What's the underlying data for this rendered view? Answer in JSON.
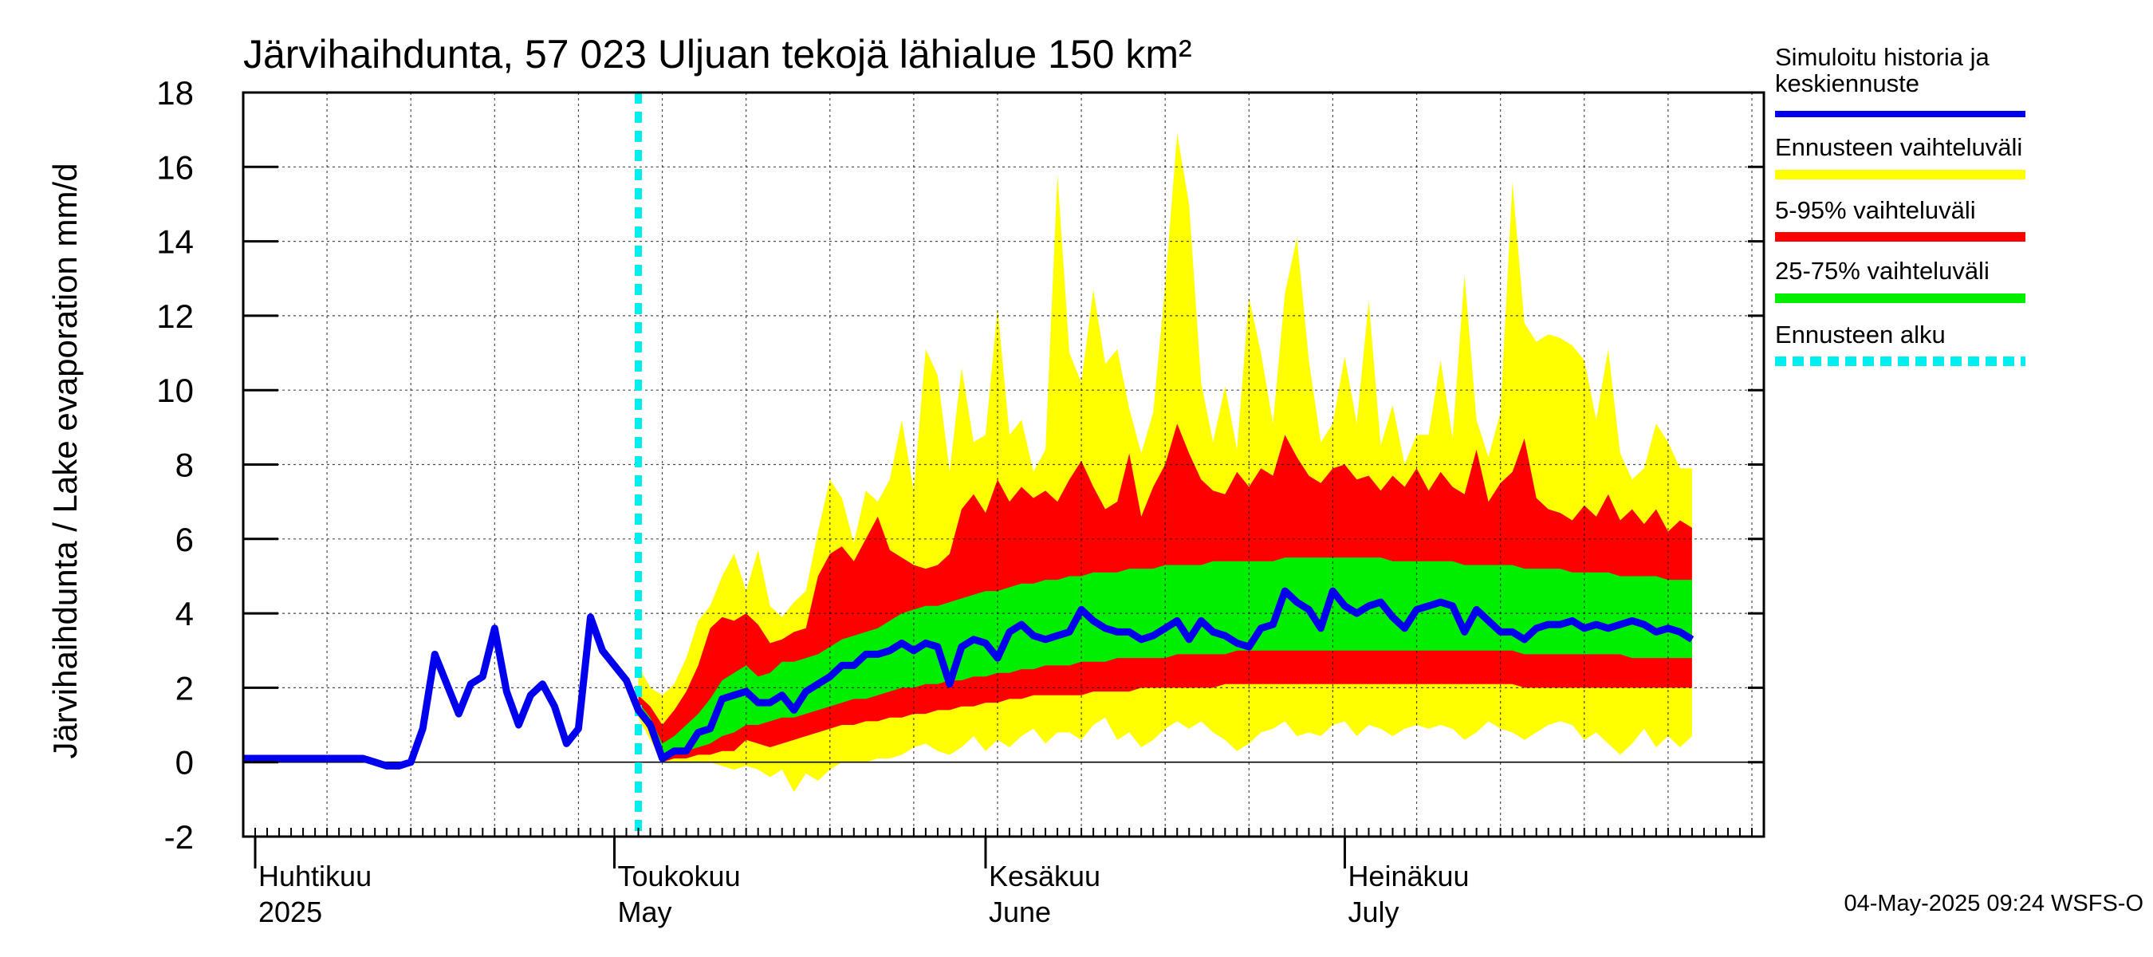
{
  "chart_data": {
    "type": "area",
    "title": "Järvihaihdunta, 57 023 Uljuan tekojä lähialue 150 km²",
    "ylabel": "Järvihaihdunta / Lake evaporation   mm/d",
    "ylim": [
      -2,
      18
    ],
    "yticks": [
      "-2",
      "0",
      "2",
      "4",
      "6",
      "8",
      "10",
      "12",
      "14",
      "16",
      "18"
    ],
    "xlim": [
      "2025-03-31",
      "2025-08-05"
    ],
    "grid": true,
    "months": [
      {
        "date": "2025-04-01",
        "fi": "Huhtikuu",
        "en": "2025"
      },
      {
        "date": "2025-05-01",
        "fi": "Toukokuu",
        "en": "May"
      },
      {
        "date": "2025-06-01",
        "fi": "Kesäkuu",
        "en": "June"
      },
      {
        "date": "2025-07-01",
        "fi": "Heinäkuu",
        "en": "July"
      }
    ],
    "forecast_start": "2025-05-03",
    "legend_position": "right",
    "legend": [
      {
        "label": "Simuloitu historia ja keskiennuste",
        "color": "#0000ee",
        "style": "line"
      },
      {
        "label": "Ennusteen vaihteluväli",
        "color": "#ffff00",
        "style": "band"
      },
      {
        "label": "5-95% vaihteluväli",
        "color": "#ff0000",
        "style": "band"
      },
      {
        "label": "25-75% vaihteluväli",
        "color": "#00ee00",
        "style": "band"
      },
      {
        "label": "Ennusteen alku",
        "color": "#00eeee",
        "style": "dashed"
      }
    ],
    "footer": "04-May-2025 09:24 WSFS-O",
    "history": [
      {
        "x": "2025-03-31",
        "y": 0.1
      },
      {
        "x": "2025-04-01",
        "y": 0.1
      },
      {
        "x": "2025-04-02",
        "y": 0.1
      },
      {
        "x": "2025-04-03",
        "y": 0.1
      },
      {
        "x": "2025-04-04",
        "y": 0.1
      },
      {
        "x": "2025-04-05",
        "y": 0.1
      },
      {
        "x": "2025-04-06",
        "y": 0.1
      },
      {
        "x": "2025-04-07",
        "y": 0.1
      },
      {
        "x": "2025-04-08",
        "y": 0.1
      },
      {
        "x": "2025-04-09",
        "y": 0.1
      },
      {
        "x": "2025-04-10",
        "y": 0.1
      },
      {
        "x": "2025-04-11",
        "y": 0.0
      },
      {
        "x": "2025-04-12",
        "y": -0.1
      },
      {
        "x": "2025-04-13",
        "y": -0.1
      },
      {
        "x": "2025-04-14",
        "y": 0.0
      },
      {
        "x": "2025-04-15",
        "y": 0.9
      },
      {
        "x": "2025-04-16",
        "y": 2.9
      },
      {
        "x": "2025-04-17",
        "y": 2.1
      },
      {
        "x": "2025-04-18",
        "y": 1.3
      },
      {
        "x": "2025-04-19",
        "y": 2.1
      },
      {
        "x": "2025-04-20",
        "y": 2.3
      },
      {
        "x": "2025-04-21",
        "y": 3.6
      },
      {
        "x": "2025-04-22",
        "y": 1.9
      },
      {
        "x": "2025-04-23",
        "y": 1.0
      },
      {
        "x": "2025-04-24",
        "y": 1.8
      },
      {
        "x": "2025-04-25",
        "y": 2.1
      },
      {
        "x": "2025-04-26",
        "y": 1.5
      },
      {
        "x": "2025-04-27",
        "y": 0.5
      },
      {
        "x": "2025-04-28",
        "y": 0.9
      },
      {
        "x": "2025-04-29",
        "y": 3.9
      },
      {
        "x": "2025-04-30",
        "y": 3.0
      },
      {
        "x": "2025-05-01",
        "y": 2.6
      },
      {
        "x": "2025-05-02",
        "y": 2.2
      },
      {
        "x": "2025-05-03",
        "y": 1.4
      }
    ],
    "forecast": [
      {
        "x": "2025-05-03",
        "y": 1.4,
        "min": 1.2,
        "p5": 1.3,
        "p25": 1.3,
        "p75": 1.6,
        "p95": 1.8,
        "max": 2.6
      },
      {
        "x": "2025-05-04",
        "y": 1.0,
        "min": 0.6,
        "p5": 0.8,
        "p25": 0.9,
        "p75": 1.2,
        "p95": 1.5,
        "max": 2.0
      },
      {
        "x": "2025-05-05",
        "y": 0.1,
        "min": 0.0,
        "p5": 0.0,
        "p25": 0.0,
        "p75": 0.5,
        "p95": 1.0,
        "max": 1.8
      },
      {
        "x": "2025-05-06",
        "y": 0.3,
        "min": 0.0,
        "p5": 0.1,
        "p25": 0.2,
        "p75": 0.7,
        "p95": 1.4,
        "max": 2.1
      },
      {
        "x": "2025-05-07",
        "y": 0.3,
        "min": 0.0,
        "p5": 0.1,
        "p25": 0.3,
        "p75": 1.0,
        "p95": 1.9,
        "max": 2.8
      },
      {
        "x": "2025-05-08",
        "y": 0.8,
        "min": 0.0,
        "p5": 0.2,
        "p25": 0.4,
        "p75": 1.3,
        "p95": 2.6,
        "max": 3.8
      },
      {
        "x": "2025-05-09",
        "y": 0.9,
        "min": 0.0,
        "p5": 0.2,
        "p25": 0.5,
        "p75": 1.7,
        "p95": 3.6,
        "max": 4.2
      },
      {
        "x": "2025-05-10",
        "y": 1.7,
        "min": -0.1,
        "p5": 0.3,
        "p25": 0.7,
        "p75": 2.2,
        "p95": 3.9,
        "max": 5.0
      },
      {
        "x": "2025-05-11",
        "y": 1.8,
        "min": -0.2,
        "p5": 0.3,
        "p25": 0.8,
        "p75": 2.4,
        "p95": 3.8,
        "max": 5.6
      },
      {
        "x": "2025-05-12",
        "y": 1.9,
        "min": -0.1,
        "p5": 0.6,
        "p25": 1.0,
        "p75": 2.6,
        "p95": 4.0,
        "max": 4.6
      },
      {
        "x": "2025-05-13",
        "y": 1.6,
        "min": -0.2,
        "p5": 0.5,
        "p25": 1.0,
        "p75": 2.3,
        "p95": 3.7,
        "max": 5.7
      },
      {
        "x": "2025-05-14",
        "y": 1.6,
        "min": -0.4,
        "p5": 0.4,
        "p25": 1.1,
        "p75": 2.4,
        "p95": 3.2,
        "max": 4.2
      },
      {
        "x": "2025-05-15",
        "y": 1.8,
        "min": -0.2,
        "p5": 0.5,
        "p25": 1.2,
        "p75": 2.7,
        "p95": 3.3,
        "max": 3.9
      },
      {
        "x": "2025-05-16",
        "y": 1.4,
        "min": -0.8,
        "p5": 0.6,
        "p25": 1.2,
        "p75": 2.7,
        "p95": 3.5,
        "max": 4.3
      },
      {
        "x": "2025-05-17",
        "y": 1.9,
        "min": -0.3,
        "p5": 0.7,
        "p25": 1.3,
        "p75": 2.8,
        "p95": 3.6,
        "max": 4.6
      },
      {
        "x": "2025-05-18",
        "y": 2.1,
        "min": -0.5,
        "p5": 0.8,
        "p25": 1.4,
        "p75": 2.9,
        "p95": 5.0,
        "max": 6.2
      },
      {
        "x": "2025-05-19",
        "y": 2.3,
        "min": -0.2,
        "p5": 0.9,
        "p25": 1.5,
        "p75": 3.1,
        "p95": 5.6,
        "max": 7.6
      },
      {
        "x": "2025-05-20",
        "y": 2.6,
        "min": 0.0,
        "p5": 1.0,
        "p25": 1.6,
        "p75": 3.3,
        "p95": 5.8,
        "max": 7.1
      },
      {
        "x": "2025-05-21",
        "y": 2.6,
        "min": 0.0,
        "p5": 1.0,
        "p25": 1.7,
        "p75": 3.4,
        "p95": 5.4,
        "max": 5.9
      },
      {
        "x": "2025-05-22",
        "y": 2.9,
        "min": 0.0,
        "p5": 1.1,
        "p25": 1.7,
        "p75": 3.5,
        "p95": 6.0,
        "max": 7.3
      },
      {
        "x": "2025-05-23",
        "y": 2.9,
        "min": 0.1,
        "p5": 1.1,
        "p25": 1.8,
        "p75": 3.6,
        "p95": 6.6,
        "max": 7.0
      },
      {
        "x": "2025-05-24",
        "y": 3.0,
        "min": 0.1,
        "p5": 1.2,
        "p25": 1.9,
        "p75": 3.8,
        "p95": 5.7,
        "max": 7.6
      },
      {
        "x": "2025-05-25",
        "y": 3.2,
        "min": 0.2,
        "p5": 1.2,
        "p25": 2.0,
        "p75": 4.0,
        "p95": 5.5,
        "max": 9.2
      },
      {
        "x": "2025-05-26",
        "y": 3.0,
        "min": 0.4,
        "p5": 1.3,
        "p25": 2.0,
        "p75": 4.1,
        "p95": 5.3,
        "max": 7.3
      },
      {
        "x": "2025-05-27",
        "y": 3.2,
        "min": 0.5,
        "p5": 1.3,
        "p25": 2.1,
        "p75": 4.2,
        "p95": 5.2,
        "max": 11.1
      },
      {
        "x": "2025-05-28",
        "y": 3.1,
        "min": 0.3,
        "p5": 1.4,
        "p25": 2.1,
        "p75": 4.2,
        "p95": 5.3,
        "max": 10.4
      },
      {
        "x": "2025-05-29",
        "y": 2.1,
        "min": 0.2,
        "p5": 1.4,
        "p25": 2.2,
        "p75": 4.3,
        "p95": 5.6,
        "max": 7.8
      },
      {
        "x": "2025-05-30",
        "y": 3.1,
        "min": 0.4,
        "p5": 1.5,
        "p25": 2.2,
        "p75": 4.4,
        "p95": 6.8,
        "max": 10.6
      },
      {
        "x": "2025-05-31",
        "y": 3.3,
        "min": 0.7,
        "p5": 1.5,
        "p25": 2.3,
        "p75": 4.5,
        "p95": 7.2,
        "max": 8.6
      },
      {
        "x": "2025-06-01",
        "y": 3.2,
        "min": 0.3,
        "p5": 1.6,
        "p25": 2.3,
        "p75": 4.6,
        "p95": 6.7,
        "max": 8.8
      },
      {
        "x": "2025-06-02",
        "y": 2.8,
        "min": 0.6,
        "p5": 1.6,
        "p25": 2.4,
        "p75": 4.6,
        "p95": 7.6,
        "max": 12.2
      },
      {
        "x": "2025-06-03",
        "y": 3.5,
        "min": 0.4,
        "p5": 1.7,
        "p25": 2.4,
        "p75": 4.7,
        "p95": 7.0,
        "max": 8.8
      },
      {
        "x": "2025-06-04",
        "y": 3.7,
        "min": 0.7,
        "p5": 1.7,
        "p25": 2.5,
        "p75": 4.8,
        "p95": 7.4,
        "max": 9.2
      },
      {
        "x": "2025-06-05",
        "y": 3.4,
        "min": 0.9,
        "p5": 1.8,
        "p25": 2.5,
        "p75": 4.8,
        "p95": 7.1,
        "max": 7.8
      },
      {
        "x": "2025-06-06",
        "y": 3.3,
        "min": 0.5,
        "p5": 1.8,
        "p25": 2.6,
        "p75": 4.9,
        "p95": 7.3,
        "max": 8.4
      },
      {
        "x": "2025-06-07",
        "y": 3.4,
        "min": 0.8,
        "p5": 1.8,
        "p25": 2.6,
        "p75": 4.9,
        "p95": 7.0,
        "max": 15.8
      },
      {
        "x": "2025-06-08",
        "y": 3.5,
        "min": 0.8,
        "p5": 1.8,
        "p25": 2.6,
        "p75": 5.0,
        "p95": 7.6,
        "max": 11.0
      },
      {
        "x": "2025-06-09",
        "y": 4.1,
        "min": 0.6,
        "p5": 1.8,
        "p25": 2.7,
        "p75": 5.0,
        "p95": 8.1,
        "max": 10.2
      },
      {
        "x": "2025-06-10",
        "y": 3.8,
        "min": 1.0,
        "p5": 1.9,
        "p25": 2.7,
        "p75": 5.1,
        "p95": 7.4,
        "max": 12.7
      },
      {
        "x": "2025-06-11",
        "y": 3.6,
        "min": 1.2,
        "p5": 1.9,
        "p25": 2.7,
        "p75": 5.1,
        "p95": 6.8,
        "max": 10.7
      },
      {
        "x": "2025-06-12",
        "y": 3.5,
        "min": 0.6,
        "p5": 1.9,
        "p25": 2.8,
        "p75": 5.1,
        "p95": 7.0,
        "max": 11.1
      },
      {
        "x": "2025-06-13",
        "y": 3.5,
        "min": 0.8,
        "p5": 1.9,
        "p25": 2.8,
        "p75": 5.2,
        "p95": 8.3,
        "max": 9.5
      },
      {
        "x": "2025-06-14",
        "y": 3.3,
        "min": 0.4,
        "p5": 2.0,
        "p25": 2.8,
        "p75": 5.2,
        "p95": 6.6,
        "max": 8.3
      },
      {
        "x": "2025-06-15",
        "y": 3.4,
        "min": 0.6,
        "p5": 2.0,
        "p25": 2.8,
        "p75": 5.2,
        "p95": 7.4,
        "max": 9.4
      },
      {
        "x": "2025-06-16",
        "y": 3.6,
        "min": 0.9,
        "p5": 2.0,
        "p25": 2.8,
        "p75": 5.3,
        "p95": 8.0,
        "max": 12.8
      },
      {
        "x": "2025-06-17",
        "y": 3.8,
        "min": 1.1,
        "p5": 2.0,
        "p25": 2.9,
        "p75": 5.3,
        "p95": 9.1,
        "max": 16.9
      },
      {
        "x": "2025-06-18",
        "y": 3.3,
        "min": 0.9,
        "p5": 2.0,
        "p25": 2.9,
        "p75": 5.3,
        "p95": 8.3,
        "max": 15.0
      },
      {
        "x": "2025-06-19",
        "y": 3.8,
        "min": 1.1,
        "p5": 2.0,
        "p25": 2.9,
        "p75": 5.3,
        "p95": 7.6,
        "max": 10.2
      },
      {
        "x": "2025-06-20",
        "y": 3.5,
        "min": 0.8,
        "p5": 2.0,
        "p25": 2.9,
        "p75": 5.4,
        "p95": 7.3,
        "max": 8.6
      },
      {
        "x": "2025-06-21",
        "y": 3.4,
        "min": 0.6,
        "p5": 2.1,
        "p25": 2.9,
        "p75": 5.4,
        "p95": 7.2,
        "max": 10.1
      },
      {
        "x": "2025-06-22",
        "y": 3.2,
        "min": 0.3,
        "p5": 2.1,
        "p25": 3.0,
        "p75": 5.4,
        "p95": 7.8,
        "max": 8.4
      },
      {
        "x": "2025-06-23",
        "y": 3.1,
        "min": 0.5,
        "p5": 2.1,
        "p25": 3.0,
        "p75": 5.4,
        "p95": 7.4,
        "max": 12.5
      },
      {
        "x": "2025-06-24",
        "y": 3.6,
        "min": 0.8,
        "p5": 2.1,
        "p25": 3.0,
        "p75": 5.4,
        "p95": 7.9,
        "max": 11.0
      },
      {
        "x": "2025-06-25",
        "y": 3.7,
        "min": 0.9,
        "p5": 2.1,
        "p25": 3.0,
        "p75": 5.4,
        "p95": 7.7,
        "max": 9.1
      },
      {
        "x": "2025-06-26",
        "y": 4.6,
        "min": 1.1,
        "p5": 2.1,
        "p25": 3.0,
        "p75": 5.5,
        "p95": 8.8,
        "max": 12.6
      },
      {
        "x": "2025-06-27",
        "y": 4.3,
        "min": 0.7,
        "p5": 2.1,
        "p25": 3.0,
        "p75": 5.5,
        "p95": 8.2,
        "max": 14.1
      },
      {
        "x": "2025-06-28",
        "y": 4.1,
        "min": 0.8,
        "p5": 2.1,
        "p25": 3.0,
        "p75": 5.5,
        "p95": 7.7,
        "max": 10.8
      },
      {
        "x": "2025-06-29",
        "y": 3.6,
        "min": 0.7,
        "p5": 2.1,
        "p25": 3.0,
        "p75": 5.5,
        "p95": 7.5,
        "max": 8.6
      },
      {
        "x": "2025-06-30",
        "y": 4.6,
        "min": 1.0,
        "p5": 2.1,
        "p25": 3.0,
        "p75": 5.5,
        "p95": 7.9,
        "max": 9.1
      },
      {
        "x": "2025-07-01",
        "y": 4.2,
        "min": 1.1,
        "p5": 2.1,
        "p25": 3.0,
        "p75": 5.5,
        "p95": 8.0,
        "max": 10.9
      },
      {
        "x": "2025-07-02",
        "y": 4.0,
        "min": 0.7,
        "p5": 2.1,
        "p25": 3.0,
        "p75": 5.5,
        "p95": 7.6,
        "max": 9.1
      },
      {
        "x": "2025-07-03",
        "y": 4.2,
        "min": 1.0,
        "p5": 2.1,
        "p25": 3.0,
        "p75": 5.5,
        "p95": 7.7,
        "max": 12.4
      },
      {
        "x": "2025-07-04",
        "y": 4.3,
        "min": 0.9,
        "p5": 2.1,
        "p25": 3.0,
        "p75": 5.5,
        "p95": 7.3,
        "max": 8.5
      },
      {
        "x": "2025-07-05",
        "y": 3.9,
        "min": 0.7,
        "p5": 2.1,
        "p25": 3.0,
        "p75": 5.4,
        "p95": 7.7,
        "max": 9.6
      },
      {
        "x": "2025-07-06",
        "y": 3.6,
        "min": 0.9,
        "p5": 2.1,
        "p25": 3.0,
        "p75": 5.4,
        "p95": 7.4,
        "max": 8.0
      },
      {
        "x": "2025-07-07",
        "y": 4.1,
        "min": 1.0,
        "p5": 2.1,
        "p25": 3.0,
        "p75": 5.4,
        "p95": 7.9,
        "max": 8.8
      },
      {
        "x": "2025-07-08",
        "y": 4.2,
        "min": 0.9,
        "p5": 2.1,
        "p25": 3.0,
        "p75": 5.4,
        "p95": 7.3,
        "max": 8.8
      },
      {
        "x": "2025-07-09",
        "y": 4.3,
        "min": 1.0,
        "p5": 2.1,
        "p25": 3.0,
        "p75": 5.4,
        "p95": 7.8,
        "max": 10.8
      },
      {
        "x": "2025-07-10",
        "y": 4.2,
        "min": 0.9,
        "p5": 2.1,
        "p25": 3.0,
        "p75": 5.4,
        "p95": 7.4,
        "max": 8.7
      },
      {
        "x": "2025-07-11",
        "y": 3.5,
        "min": 0.6,
        "p5": 2.1,
        "p25": 3.0,
        "p75": 5.3,
        "p95": 7.2,
        "max": 13.1
      },
      {
        "x": "2025-07-12",
        "y": 4.1,
        "min": 0.8,
        "p5": 2.1,
        "p25": 3.0,
        "p75": 5.3,
        "p95": 8.4,
        "max": 9.2
      },
      {
        "x": "2025-07-13",
        "y": 3.8,
        "min": 1.1,
        "p5": 2.1,
        "p25": 3.0,
        "p75": 5.3,
        "p95": 7.0,
        "max": 8.2
      },
      {
        "x": "2025-07-14",
        "y": 3.5,
        "min": 0.9,
        "p5": 2.1,
        "p25": 3.0,
        "p75": 5.3,
        "p95": 7.5,
        "max": 9.4
      },
      {
        "x": "2025-07-15",
        "y": 3.5,
        "min": 0.8,
        "p5": 2.1,
        "p25": 3.0,
        "p75": 5.3,
        "p95": 7.8,
        "max": 15.6
      },
      {
        "x": "2025-07-16",
        "y": 3.3,
        "min": 0.6,
        "p5": 2.0,
        "p25": 2.9,
        "p75": 5.2,
        "p95": 8.7,
        "max": 11.8
      },
      {
        "x": "2025-07-17",
        "y": 3.6,
        "min": 0.8,
        "p5": 2.0,
        "p25": 2.9,
        "p75": 5.2,
        "p95": 7.1,
        "max": 11.3
      },
      {
        "x": "2025-07-18",
        "y": 3.7,
        "min": 1.0,
        "p5": 2.0,
        "p25": 2.9,
        "p75": 5.2,
        "p95": 6.8,
        "max": 11.5
      },
      {
        "x": "2025-07-19",
        "y": 3.7,
        "min": 1.1,
        "p5": 2.0,
        "p25": 2.9,
        "p75": 5.2,
        "p95": 6.7,
        "max": 11.4
      },
      {
        "x": "2025-07-20",
        "y": 3.8,
        "min": 1.0,
        "p5": 2.0,
        "p25": 2.9,
        "p75": 5.1,
        "p95": 6.5,
        "max": 11.2
      },
      {
        "x": "2025-07-21",
        "y": 3.6,
        "min": 0.6,
        "p5": 2.0,
        "p25": 2.9,
        "p75": 5.1,
        "p95": 6.9,
        "max": 10.8
      },
      {
        "x": "2025-07-22",
        "y": 3.7,
        "min": 0.8,
        "p5": 2.0,
        "p25": 2.9,
        "p75": 5.1,
        "p95": 6.6,
        "max": 9.2
      },
      {
        "x": "2025-07-23",
        "y": 3.6,
        "min": 0.5,
        "p5": 2.0,
        "p25": 2.9,
        "p75": 5.1,
        "p95": 7.2,
        "max": 11.1
      },
      {
        "x": "2025-07-24",
        "y": 3.7,
        "min": 0.2,
        "p5": 2.0,
        "p25": 2.9,
        "p75": 5.0,
        "p95": 6.5,
        "max": 8.3
      },
      {
        "x": "2025-07-25",
        "y": 3.8,
        "min": 0.5,
        "p5": 2.0,
        "p25": 2.8,
        "p75": 5.0,
        "p95": 6.8,
        "max": 7.6
      },
      {
        "x": "2025-07-26",
        "y": 3.7,
        "min": 0.9,
        "p5": 2.0,
        "p25": 2.8,
        "p75": 5.0,
        "p95": 6.4,
        "max": 7.9
      },
      {
        "x": "2025-07-27",
        "y": 3.5,
        "min": 0.4,
        "p5": 2.0,
        "p25": 2.8,
        "p75": 5.0,
        "p95": 6.8,
        "max": 9.1
      },
      {
        "x": "2025-07-28",
        "y": 3.6,
        "min": 0.7,
        "p5": 2.0,
        "p25": 2.8,
        "p75": 4.9,
        "p95": 6.2,
        "max": 8.6
      },
      {
        "x": "2025-07-29",
        "y": 3.5,
        "min": 0.4,
        "p5": 2.0,
        "p25": 2.8,
        "p75": 4.9,
        "p95": 6.5,
        "max": 7.9
      },
      {
        "x": "2025-07-30",
        "y": 3.3,
        "min": 0.7,
        "p5": 2.0,
        "p25": 2.8,
        "p75": 4.9,
        "p95": 6.3,
        "max": 7.9
      }
    ]
  }
}
